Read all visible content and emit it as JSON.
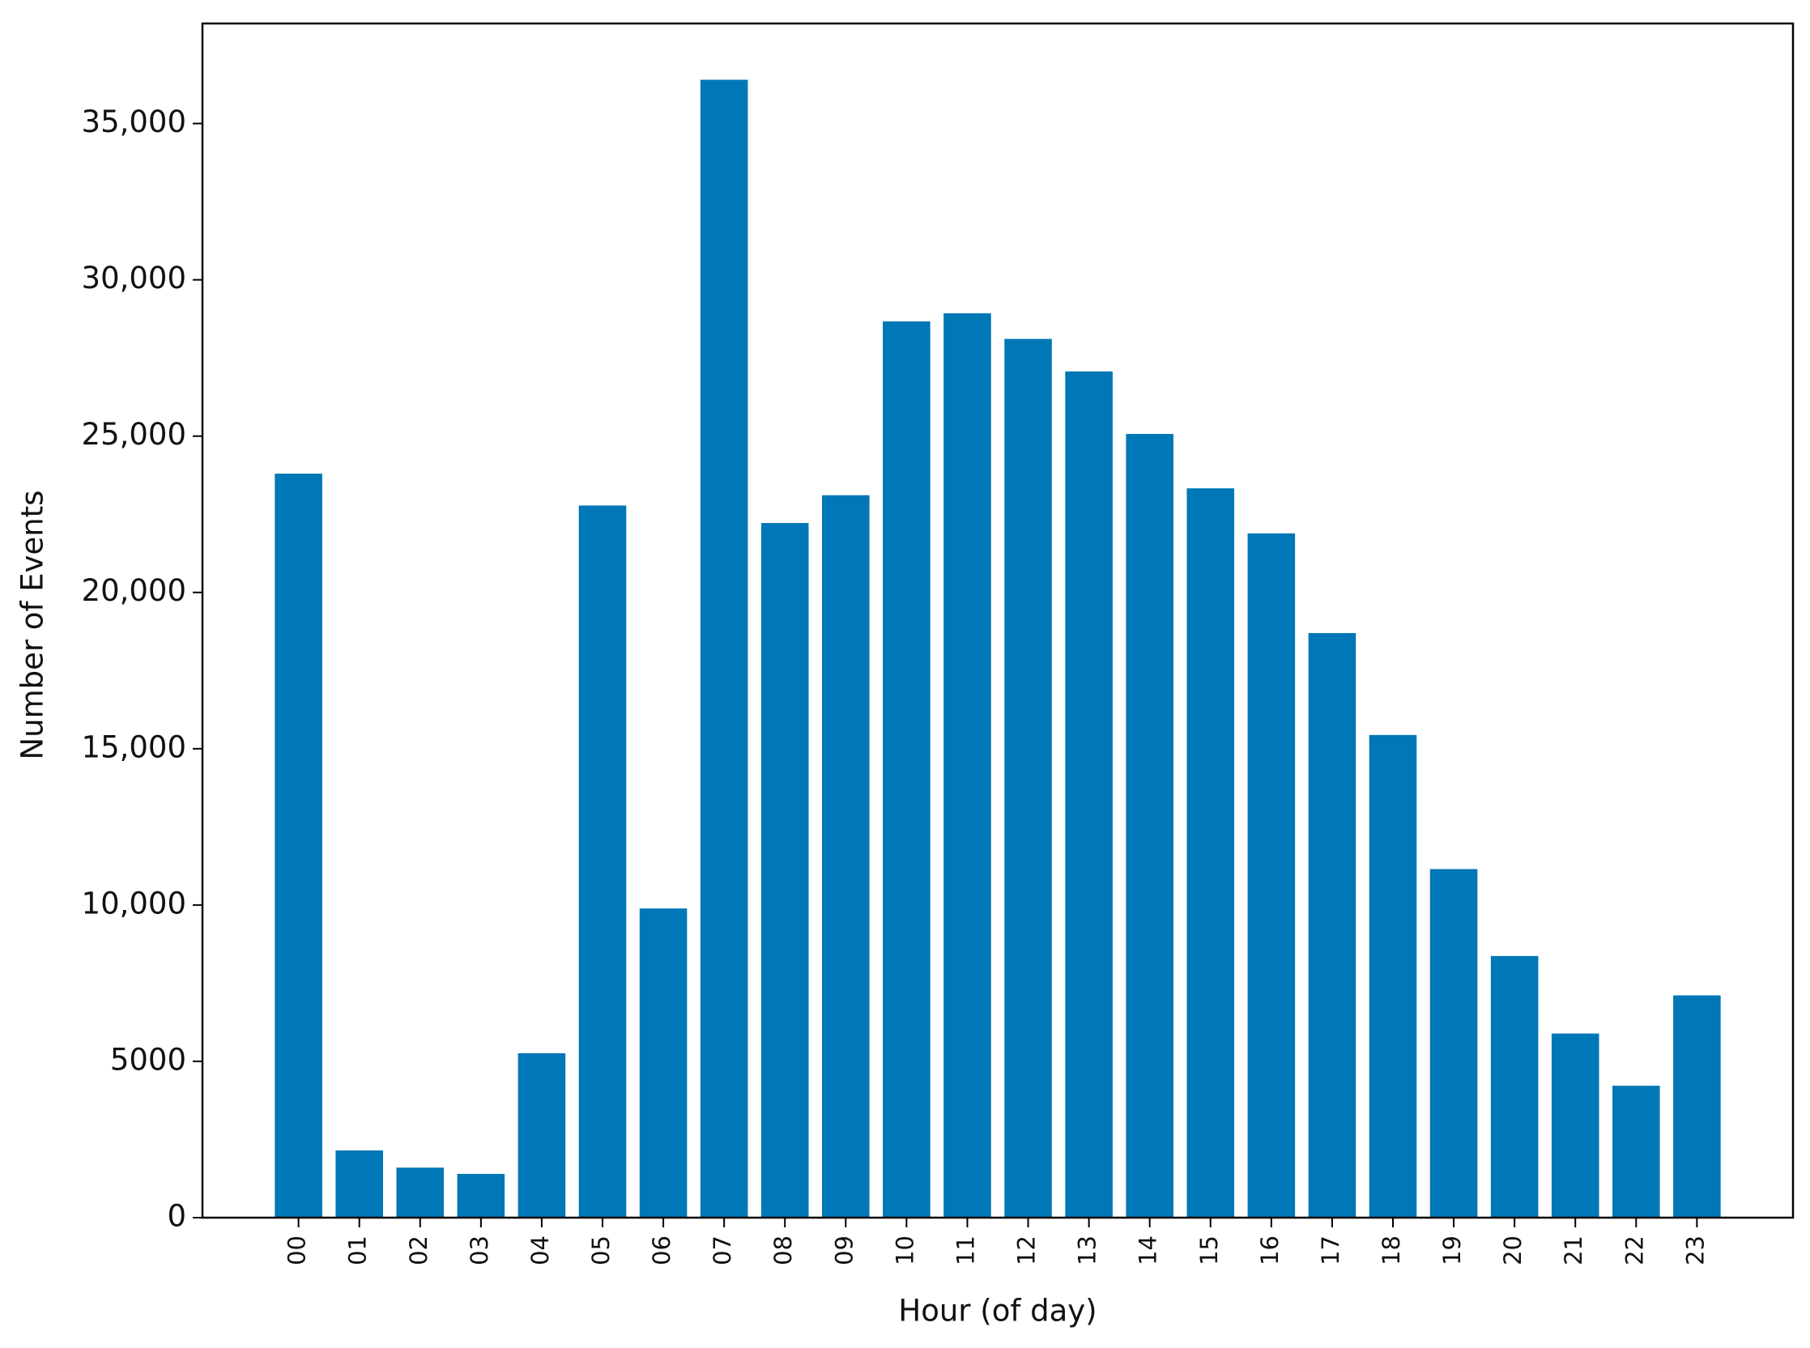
{
  "chart_data": {
    "type": "bar",
    "x_label": "Hour (of day)",
    "y_label": "Number of Events",
    "categories": [
      "00",
      "01",
      "02",
      "03",
      "04",
      "05",
      "06",
      "07",
      "08",
      "09",
      "10",
      "11",
      "12",
      "13",
      "14",
      "15",
      "16",
      "17",
      "18",
      "19",
      "20",
      "21",
      "22",
      "23"
    ],
    "values": [
      23800,
      2150,
      1600,
      1400,
      5260,
      22780,
      9890,
      36400,
      22220,
      23110,
      28670,
      28930,
      28110,
      27070,
      25070,
      23330,
      21890,
      18700,
      15440,
      11150,
      8370,
      5890,
      4220,
      7110
    ],
    "color": "#0077b6",
    "ylim": [
      0,
      38200
    ],
    "yticks": [
      0,
      5000,
      {
        "value": 10000,
        "label": "10,000"
      },
      {
        "value": 15000,
        "label": "15,000"
      },
      {
        "value": 20000,
        "label": "20,000"
      },
      {
        "value": 25000,
        "label": "25,000"
      },
      {
        "value": 30000,
        "label": "30,000"
      },
      {
        "value": 35000,
        "label": "35,000"
      }
    ],
    "grid": false
  }
}
